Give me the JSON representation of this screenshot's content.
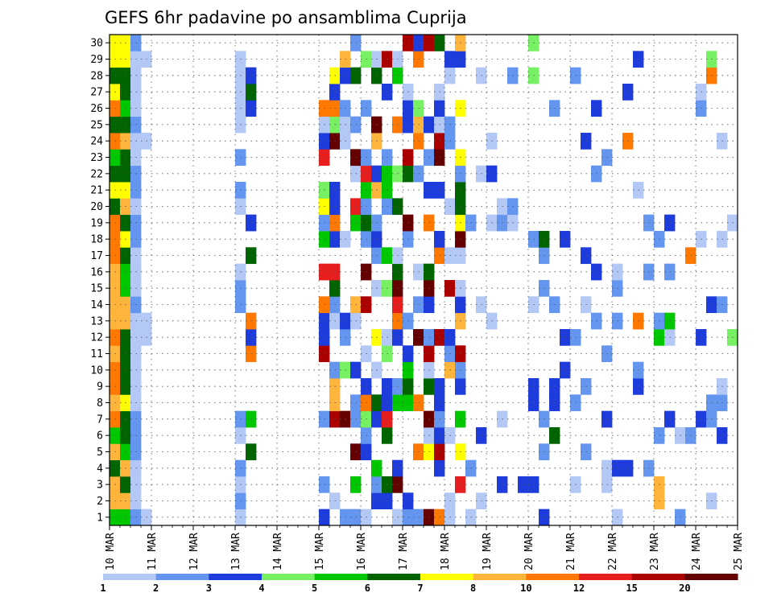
{
  "chart_data": {
    "type": "heatmap",
    "title": "GEFS 6hr padavine po ansamblima Cuprija",
    "xlabel": "",
    "ylabel": "",
    "x_tick_labels": [
      "10 MAR",
      "11 MAR",
      "12 MAR",
      "13 MAR",
      "14 MAR",
      "15 MAR",
      "16 MAR",
      "17 MAR",
      "18 MAR",
      "19 MAR",
      "20 MAR",
      "21 MAR",
      "22 MAR",
      "23 MAR",
      "24 MAR",
      "25 MAR"
    ],
    "y_tick_labels": [
      "1",
      "2",
      "3",
      "4",
      "5",
      "6",
      "7",
      "8",
      "9",
      "10",
      "11",
      "12",
      "13",
      "14",
      "15",
      "16",
      "17",
      "18",
      "19",
      "20",
      "21",
      "22",
      "23",
      "24",
      "25",
      "26",
      "27",
      "28",
      "29",
      "30"
    ],
    "xlim_days": [
      0,
      15
    ],
    "ylim_members": [
      0,
      30
    ],
    "grid": true,
    "legend_position": "bottom",
    "legend_levels": [
      "1",
      "2",
      "3",
      "4",
      "5",
      "6",
      "7",
      "8",
      "10",
      "12",
      "15",
      "20"
    ],
    "colors": [
      "#b4c8f5",
      "#6496f0",
      "#1e3cdc",
      "#78f064",
      "#00c800",
      "#006400",
      "#ffff00",
      "#ffb43c",
      "#ff7800",
      "#e61e1e",
      "#aa0000",
      "#640000"
    ],
    "rows": [
      "DE..........................................................................................................Cb........D.........................................",
      "cb....................................E..........a....................................................................CbB.........................................",
      "a6................................................e.................................",
      "bb.........Ea....................................h.........................................",
      "f.......................................................................................",
      "c..........ee...................................bb.........................................................",
      "ff.......................................................................................",
      "a..................ca.......................................",
      "cb.........................",
      "a...................",
      "bb..",
      "c...."
    ]
  }
}
